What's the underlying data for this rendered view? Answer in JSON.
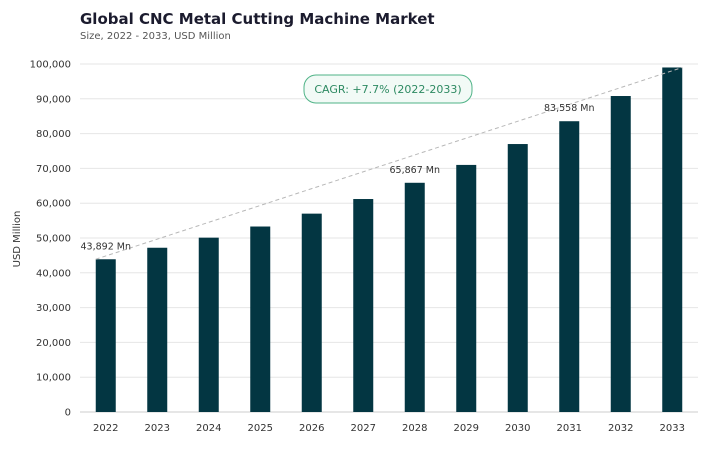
{
  "chart_data": {
    "type": "bar",
    "title": "Global CNC Metal Cutting Machine Market",
    "subtitle": "Size, 2022 - 2033, USD Million",
    "xlabel": "",
    "ylabel": "USD Million",
    "categories": [
      "2022",
      "2023",
      "2024",
      "2025",
      "2026",
      "2027",
      "2028",
      "2029",
      "2030",
      "2031",
      "2032",
      "2033"
    ],
    "values": [
      43892,
      47200,
      50100,
      53300,
      57000,
      61200,
      65867,
      71000,
      77000,
      83558,
      90800,
      99000
    ],
    "ylim": [
      0,
      100000
    ],
    "yticks": [
      0,
      10000,
      20000,
      30000,
      40000,
      50000,
      60000,
      70000,
      80000,
      90000,
      100000
    ],
    "ytick_labels": [
      "0",
      "10,000",
      "20,000",
      "30,000",
      "40,000",
      "50,000",
      "60,000",
      "70,000",
      "80,000",
      "90,000",
      "100,000"
    ],
    "grid": true,
    "data_labels": [
      {
        "category": "2022",
        "text": "43,892 Mn"
      },
      {
        "category": "2028",
        "text": "65,867 Mn"
      },
      {
        "category": "2031",
        "text": "83,558 Mn"
      }
    ],
    "annotation": {
      "text": "CAGR: +7.7% (2022-2033)"
    },
    "trend_line": {
      "from": {
        "category": "2022",
        "value": 43892
      },
      "to": {
        "category": "2033",
        "value": 99000
      },
      "style": "dashed"
    }
  },
  "colors": {
    "bar": "#033642",
    "grid": "#e6e6e6",
    "axis_text": "#333333",
    "trend_line": "#b8b8b8",
    "annotation_text": "#2e8a62",
    "annotation_border": "#4fb387",
    "annotation_fill": "#f2faf6"
  }
}
